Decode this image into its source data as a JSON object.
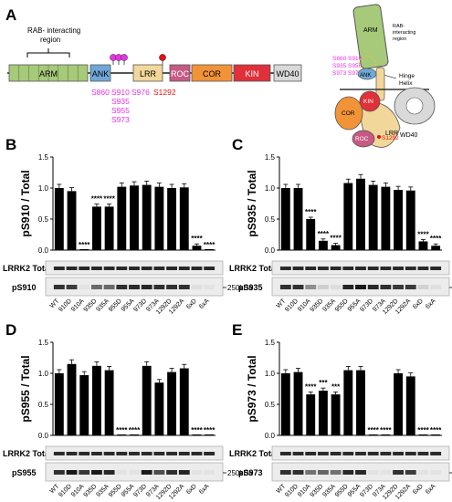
{
  "panel_a": {
    "letter": "A",
    "rab_label": [
      "RAB- interacting",
      "region"
    ],
    "domains": [
      {
        "name": "ARM",
        "color": "#a6c97a"
      },
      {
        "name": "ANK",
        "color": "#6fa8d8"
      },
      {
        "name": "LRR",
        "color": "#f2d79a"
      },
      {
        "name": "ROC",
        "color": "#c55a84"
      },
      {
        "name": "COR",
        "color": "#f29338"
      },
      {
        "name": "KIN",
        "color": "#e0303a"
      },
      {
        "name": "WD40",
        "color": "#d9d9d9"
      }
    ],
    "site_labels": [
      "S860",
      "S910",
      "S935",
      "S976",
      "S955",
      "S973"
    ],
    "s1292": "S1292",
    "struct_labels": {
      "arm": "ARM",
      "rab": [
        "RAB-",
        "interacting",
        "region"
      ],
      "hinge": [
        "Hinge",
        "Helix"
      ],
      "sites": [
        "S860 S910",
        "S935 S955",
        "S973 S976"
      ],
      "ank": "ANK",
      "kin": "KIN",
      "cor": "COR",
      "lrr": "LRR",
      "wd40": "WD40",
      "roc": "ROC",
      "s1292": "S1292"
    },
    "colors": {
      "magenta": "#e633e6",
      "red": "#e01010"
    }
  },
  "chart_data": [
    {
      "panel": "B",
      "type": "bar",
      "ylabel": "pS910 / Total",
      "ylim": [
        0,
        1.5
      ],
      "yticks": [
        0,
        0.5,
        1.0,
        1.5
      ],
      "categories": [
        "WT",
        "910D",
        "910A",
        "935D",
        "935A",
        "955D",
        "955A",
        "973D",
        "973A",
        "1292D",
        "1292A",
        "6xD",
        "6xA"
      ],
      "values": [
        1.0,
        0.95,
        0.0,
        0.7,
        0.7,
        1.02,
        1.04,
        1.05,
        1.02,
        1.0,
        1.01,
        0.07,
        0.0
      ],
      "sig": [
        "",
        "",
        "****",
        "****",
        "****",
        "",
        "",
        "",
        "",
        "",
        "",
        "****",
        "****"
      ],
      "blot_labels": [
        "LRRK2 Total",
        "pS910"
      ],
      "size_marker": "250kDa"
    },
    {
      "panel": "C",
      "type": "bar",
      "ylabel": "pS935 / Total",
      "ylim": [
        0,
        1.5
      ],
      "yticks": [
        0,
        0.5,
        1.0,
        1.5
      ],
      "categories": [
        "WT",
        "910D",
        "910A",
        "935D",
        "935A",
        "955D",
        "955A",
        "973D",
        "973A",
        "1292D",
        "1292A",
        "6xD",
        "6xA"
      ],
      "values": [
        1.0,
        1.0,
        0.5,
        0.15,
        0.08,
        1.08,
        1.15,
        1.05,
        1.02,
        0.97,
        0.96,
        0.14,
        0.07
      ],
      "sig": [
        "",
        "",
        "****",
        "****",
        "****",
        "",
        "",
        "",
        "",
        "",
        "",
        "****",
        "****"
      ],
      "blot_labels": [
        "LRRK2 Total",
        "pS935"
      ],
      "size_marker": "250kDa"
    },
    {
      "panel": "D",
      "type": "bar",
      "ylabel": "pS955 / Total",
      "ylim": [
        0,
        1.5
      ],
      "yticks": [
        0,
        0.5,
        1.0,
        1.5
      ],
      "categories": [
        "WT",
        "910D",
        "910A",
        "935D",
        "935A",
        "955D",
        "955A",
        "973D",
        "973A",
        "1292D",
        "1292A",
        "6xD",
        "6xA"
      ],
      "values": [
        1.0,
        1.15,
        0.97,
        1.12,
        1.05,
        0.0,
        0.0,
        1.12,
        0.85,
        1.02,
        1.08,
        0.0,
        0.0
      ],
      "sig": [
        "",
        "",
        "",
        "",
        "",
        "****",
        "****",
        "",
        "",
        "",
        "",
        "****",
        "****"
      ],
      "blot_labels": [
        "LRRK2 Total",
        "pS955"
      ],
      "size_marker": "250kDa"
    },
    {
      "panel": "E",
      "type": "bar",
      "ylabel": "pS973 / Total",
      "ylim": [
        0,
        1.5
      ],
      "yticks": [
        0,
        0.5,
        1.0,
        1.5
      ],
      "categories": [
        "WT",
        "910D",
        "910A",
        "935D",
        "935A",
        "955D",
        "955A",
        "973D",
        "973A",
        "1292D",
        "1292A",
        "6xD",
        "6xA"
      ],
      "values": [
        1.0,
        1.02,
        0.66,
        0.72,
        0.66,
        1.05,
        1.05,
        0.0,
        0.0,
        1.0,
        0.95,
        0.0,
        0.0
      ],
      "sig": [
        "",
        "",
        "****",
        "***",
        "***",
        "",
        "",
        "****",
        "****",
        "",
        "",
        "****",
        "****"
      ],
      "blot_labels": [
        "LRRK2 Total",
        "pS973"
      ],
      "size_marker": "250kDa"
    }
  ],
  "yticklabels": [
    "0.0",
    "0.5",
    "1.0",
    "1.5"
  ]
}
